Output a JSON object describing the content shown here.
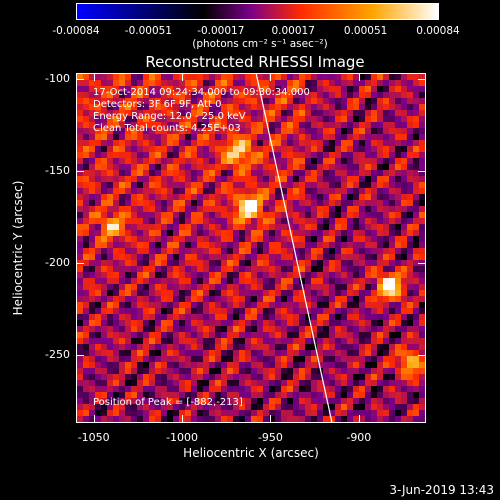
{
  "colorbar": {
    "ticks": [
      "-0.00084",
      "-0.00051",
      "-0.00017",
      "0.00017",
      "0.00051",
      "0.00084"
    ],
    "units_text": "(photons cm⁻² s⁻¹ asec⁻²)",
    "colors": [
      "#0000ff",
      "#000000",
      "#7a0087",
      "#ff2a00",
      "#ffa500",
      "#ffffff"
    ]
  },
  "title": "Reconstructed RHESSI Image",
  "info": {
    "line1": "17-Oct-2014 09:24:34.000 to 09:30:34.000",
    "line2": "Detectors: 3F 6F 9F, Att 0",
    "line3": "Energy Range: 12.0 - 25.0 keV",
    "line4": "Clean     Total counts: 4.25E+03",
    "peak": "Position of Peak = [-882,-213]"
  },
  "chart_data": {
    "type": "heatmap",
    "xlabel": "Heliocentric X (arcsec)",
    "ylabel": "Heliocentric Y (arcsec)",
    "xlim": [
      -1060,
      -862
    ],
    "ylim": [
      -287,
      -97
    ],
    "x_ticks": [
      "-1050",
      "-1000",
      "-950",
      "-900"
    ],
    "y_ticks": [
      "-100",
      "-150",
      "-200",
      "-250"
    ],
    "x_tick_values": [
      -1050,
      -1000,
      -950,
      -900
    ],
    "y_tick_values": [
      -100,
      -150,
      -200,
      -250
    ],
    "peak": [
      -882,
      -213
    ],
    "bright_sources": [
      {
        "x": -962,
        "y": -170,
        "v": 0.0008
      },
      {
        "x": -882,
        "y": -213,
        "v": 0.00084
      },
      {
        "x": -968,
        "y": -140,
        "v": 0.0006
      },
      {
        "x": -870,
        "y": -255,
        "v": 0.0006
      },
      {
        "x": -1040,
        "y": -180,
        "v": 0.0005
      }
    ],
    "limb_line": [
      [
        -958,
        -97
      ],
      [
        -915,
        -287
      ]
    ]
  },
  "timestamp": "3-Jun-2019 13:43"
}
